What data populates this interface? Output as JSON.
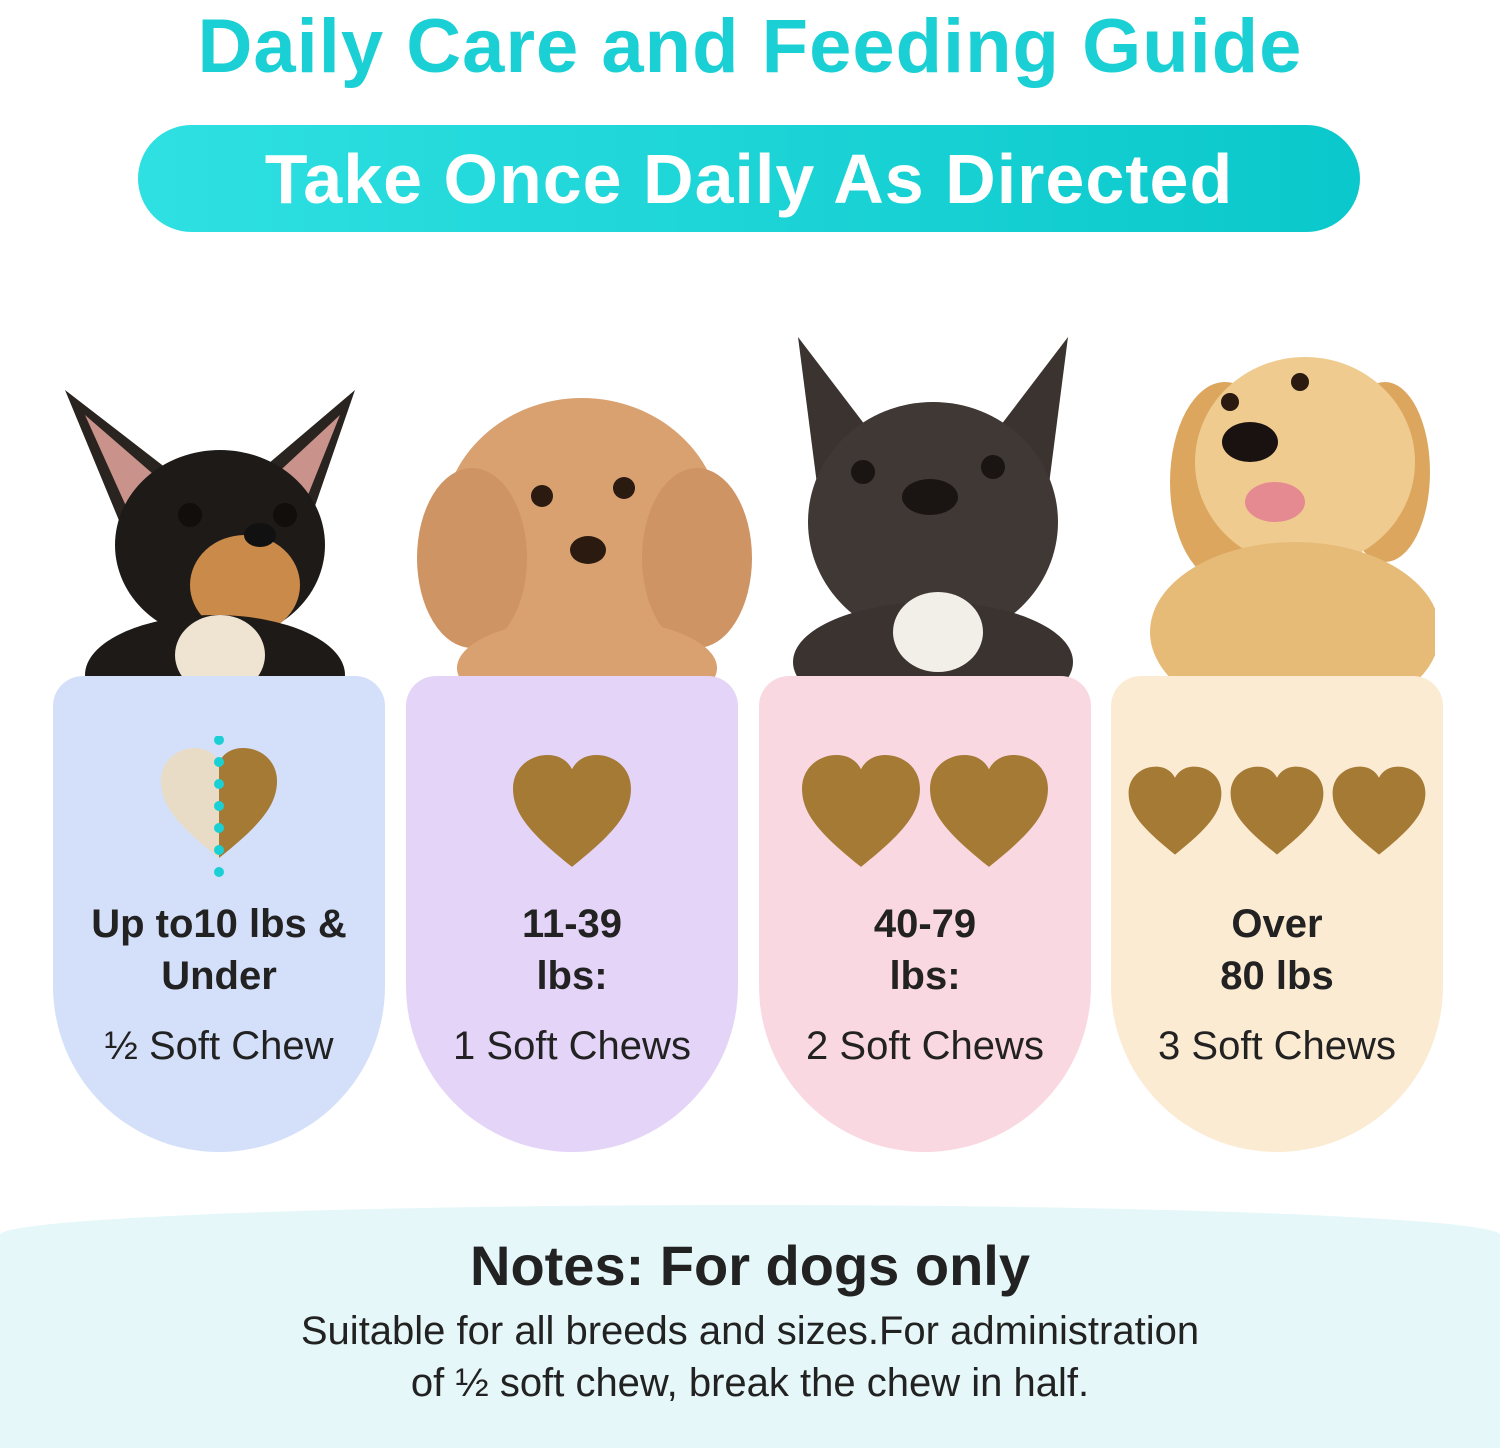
{
  "header": {
    "title": "Daily Care and Feeding Guide",
    "subtitle": "Take Once Daily As Directed"
  },
  "colors": {
    "accent": "#1bd0d4",
    "chew": "#a47a34",
    "chew_half": "#e8dcc6"
  },
  "cards": [
    {
      "weight_line1": "Up to10 lbs &",
      "weight_line2": "Under",
      "dose": "½ Soft Chew",
      "chews": 0.5,
      "bg": "#d4e0fa",
      "dog": "chihuahua"
    },
    {
      "weight_line1": "11-39",
      "weight_line2": "lbs:",
      "dose": "1 Soft Chews",
      "chews": 1,
      "bg": "#e4d5f8",
      "dog": "poodle"
    },
    {
      "weight_line1": "40-79",
      "weight_line2": "lbs:",
      "dose": "2 Soft Chews",
      "chews": 2,
      "bg": "#fad8e1",
      "dog": "french-bulldog"
    },
    {
      "weight_line1": "Over",
      "weight_line2": "80 lbs",
      "dose": "3 Soft Chews",
      "chews": 3,
      "bg": "#fcebd3",
      "dog": "golden-retriever"
    }
  ],
  "notes": {
    "heading": "Notes: For dogs only",
    "line1": "Suitable for all breeds and sizes.For administration",
    "line2": "of ½ soft chew, break the chew in half."
  }
}
